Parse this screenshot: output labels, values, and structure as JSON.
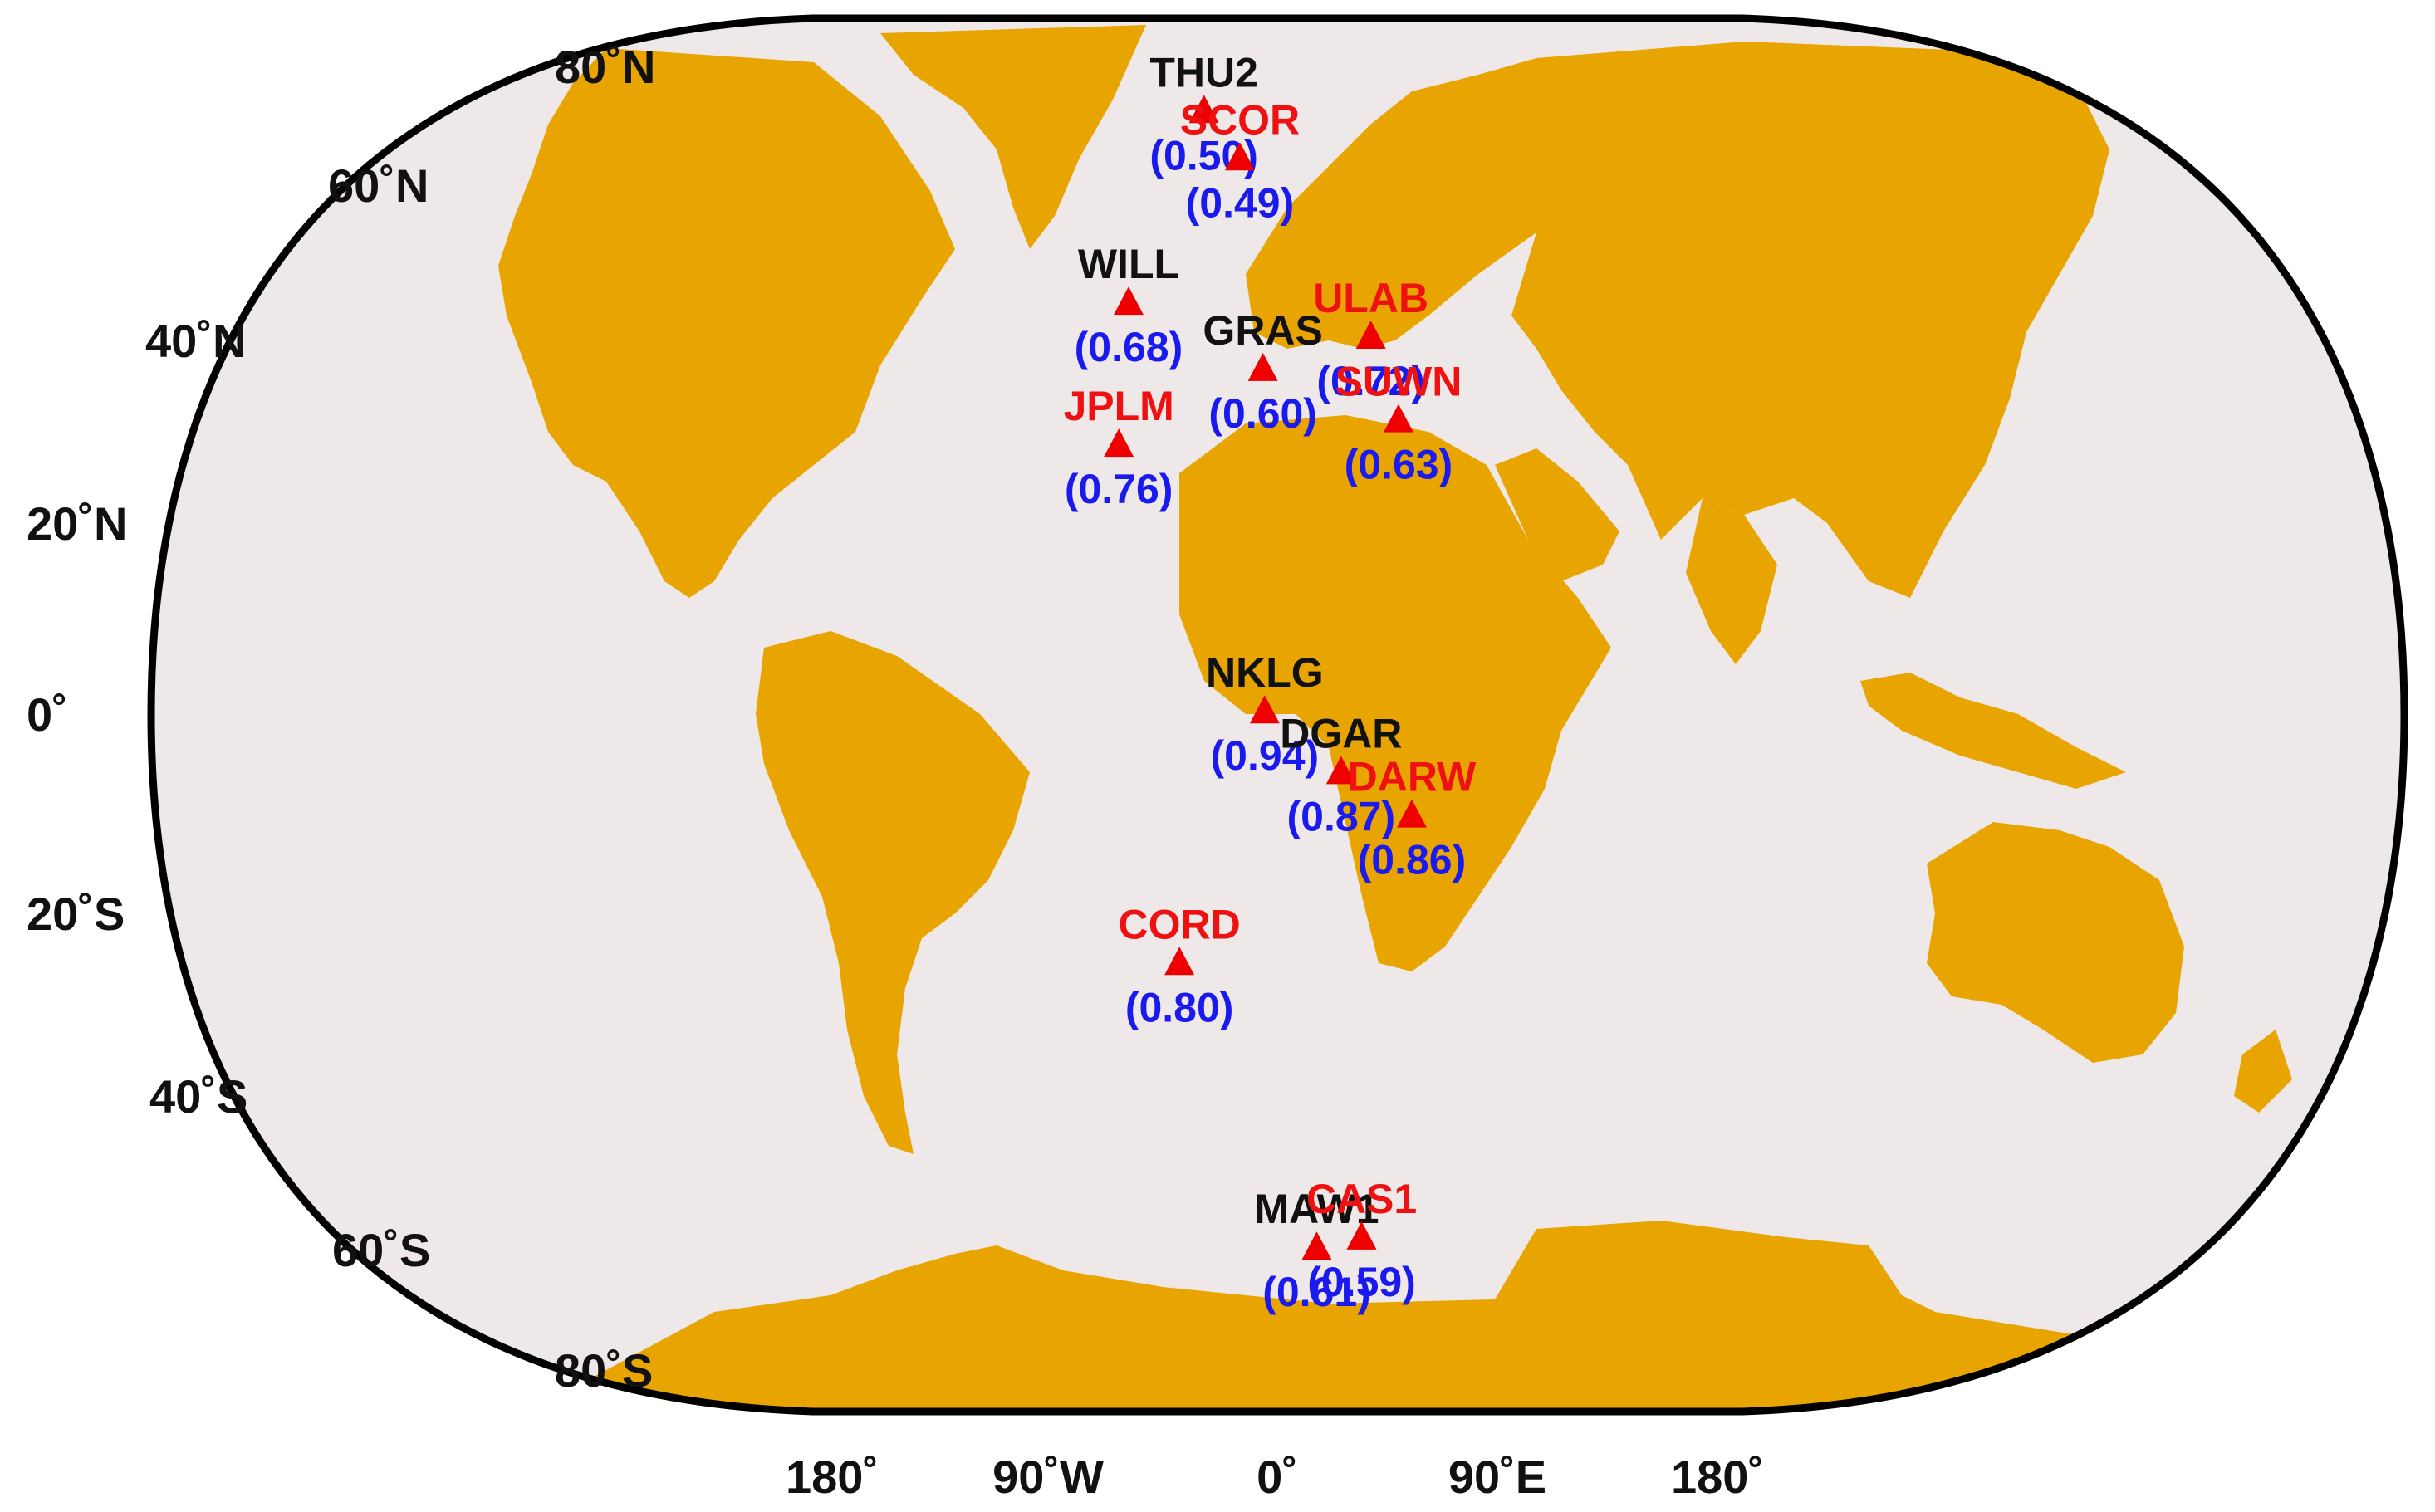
{
  "colors": {
    "ocean": "#efe8e8",
    "land": "#e8a400",
    "frame": "#000000",
    "marker": "#ee0000",
    "value_text": "#1a1aee",
    "name_black": "#111111",
    "name_red": "#ee1111"
  },
  "lat_labels": [
    "80˚N",
    "60˚N",
    "40˚N",
    "20˚N",
    "0˚",
    "20˚S",
    "40˚S",
    "60˚S",
    "80˚S"
  ],
  "lon_labels": [
    "180˚",
    "90˚W",
    "0˚",
    "90˚E",
    "180˚"
  ],
  "stations": [
    {
      "name": "THU2",
      "value": "(0.50)",
      "name_color": "black",
      "lon": -68.8,
      "lat": 76.5
    },
    {
      "name": "SCOR",
      "value": "(0.49)",
      "name_color": "red",
      "lon": -22.0,
      "lat": 70.5
    },
    {
      "name": "WILL",
      "value": "(0.68)",
      "name_color": "black",
      "lon": -122.2,
      "lat": 52.2
    },
    {
      "name": "JPLM",
      "value": "(0.76)",
      "name_color": "red",
      "lon": -118.2,
      "lat": 34.2
    },
    {
      "name": "GRAS",
      "value": "(0.60)",
      "name_color": "black",
      "lon": 6.9,
      "lat": 43.8
    },
    {
      "name": "ULAB",
      "value": "(0.72)",
      "name_color": "red",
      "lon": 107.1,
      "lat": 47.9
    },
    {
      "name": "SUWN",
      "value": "(0.63)",
      "name_color": "red",
      "lon": 127.0,
      "lat": 37.3
    },
    {
      "name": "NKLG",
      "value": "(0.94)",
      "name_color": "black",
      "lon": 9.7,
      "lat": 0.4
    },
    {
      "name": "DGAR",
      "value": "(0.87)",
      "name_color": "black",
      "lon": 72.4,
      "lat": -7.3
    },
    {
      "name": "DARW",
      "value": "(0.86)",
      "name_color": "red",
      "lon": 131.1,
      "lat": -12.8
    },
    {
      "name": "CORD",
      "value": "(0.80)",
      "name_color": "red",
      "lon": -64.5,
      "lat": -31.5
    },
    {
      "name": "MAW1",
      "value": "(0.61)",
      "name_color": "black",
      "lon": 62.9,
      "lat": -67.6
    },
    {
      "name": "CAS1",
      "value": "(0.59)",
      "name_color": "red",
      "lon": 110.5,
      "lat": -66.3
    }
  ]
}
